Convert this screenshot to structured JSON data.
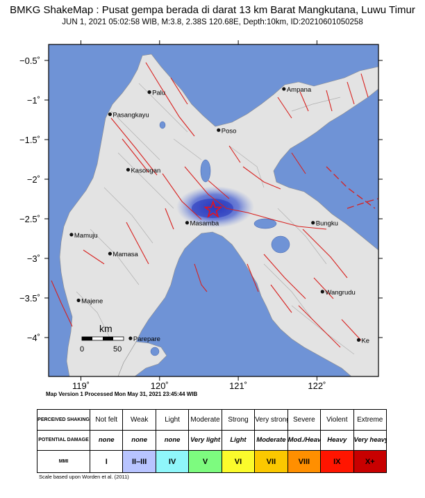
{
  "header": {
    "title": "BMKG ShakeMap : Pusat gempa berada di darat 13 km Barat Mangkutana, Luwu Timur",
    "subtitle": "JUN 1, 2021 05:02:58 WIB, M:3.8, 2.38S 120.68E, Depth:10km, ID:20210601050258"
  },
  "map": {
    "lat_ticks": [
      "−0.5˚",
      "−1˚",
      "−1.5˚",
      "−2˚",
      "−2.5˚",
      "−3˚",
      "−3.5˚",
      "−4˚"
    ],
    "lon_ticks": [
      "119˚",
      "120˚",
      "121˚",
      "122˚"
    ],
    "epicenter": {
      "lat": -2.38,
      "lon": 120.68
    },
    "cities": [
      {
        "name": "Palu",
        "lon": 119.87,
        "lat": -0.9
      },
      {
        "name": "Pasangkayu",
        "lon": 119.37,
        "lat": -1.18
      },
      {
        "name": "Poso",
        "lon": 120.75,
        "lat": -1.38
      },
      {
        "name": "Ampana",
        "lon": 121.58,
        "lat": -0.86
      },
      {
        "name": "Kasongan",
        "lon": 119.6,
        "lat": -1.88
      },
      {
        "name": "Masamba",
        "lon": 120.35,
        "lat": -2.55
      },
      {
        "name": "Bungku",
        "lon": 121.95,
        "lat": -2.55
      },
      {
        "name": "Mamuju",
        "lon": 118.88,
        "lat": -2.7
      },
      {
        "name": "Mamasa",
        "lon": 119.37,
        "lat": -2.94
      },
      {
        "name": "Wangrudu",
        "lon": 122.07,
        "lat": -3.42
      },
      {
        "name": "Majene",
        "lon": 118.97,
        "lat": -3.53
      },
      {
        "name": "Parepare",
        "lon": 119.63,
        "lat": -4.01
      },
      {
        "name": "Ke",
        "lon": 122.53,
        "lat": -4.03
      }
    ],
    "scale_bar": {
      "unit": "km",
      "labels": [
        "0",
        "50"
      ]
    },
    "colors": {
      "sea": "#6f93d6",
      "land": "#e2e2e2",
      "fault": "#d8201e",
      "shaking": "#3048c8"
    }
  },
  "footnote": "Map Version 1 Processed Mon May 31, 2021 23:45:44 WIB",
  "legend": {
    "rows": [
      {
        "label": "PERCEIVED SHAKING",
        "values": [
          "Not felt",
          "Weak",
          "Light",
          "Moderate",
          "Strong",
          "Very strong",
          "Severe",
          "Violent",
          "Extreme"
        ]
      },
      {
        "label": "POTENTIAL DAMAGE",
        "values": [
          "none",
          "none",
          "none",
          "Very light",
          "Light",
          "Moderate",
          "Mod./Heavy",
          "Heavy",
          "Very heavy"
        ]
      },
      {
        "label": "MMI",
        "values": [
          "I",
          "II–III",
          "IV",
          "V",
          "VI",
          "VII",
          "VIII",
          "IX",
          "X+"
        ]
      }
    ],
    "mmi_colors": [
      "#ffffff",
      "#b8c4ff",
      "#8ff6fa",
      "#7dfb7f",
      "#fbfb2c",
      "#fbc800",
      "#ff8f00",
      "#ff1500",
      "#c80000"
    ]
  },
  "scale_note": "Scale based upon Worden et al. (2011)"
}
